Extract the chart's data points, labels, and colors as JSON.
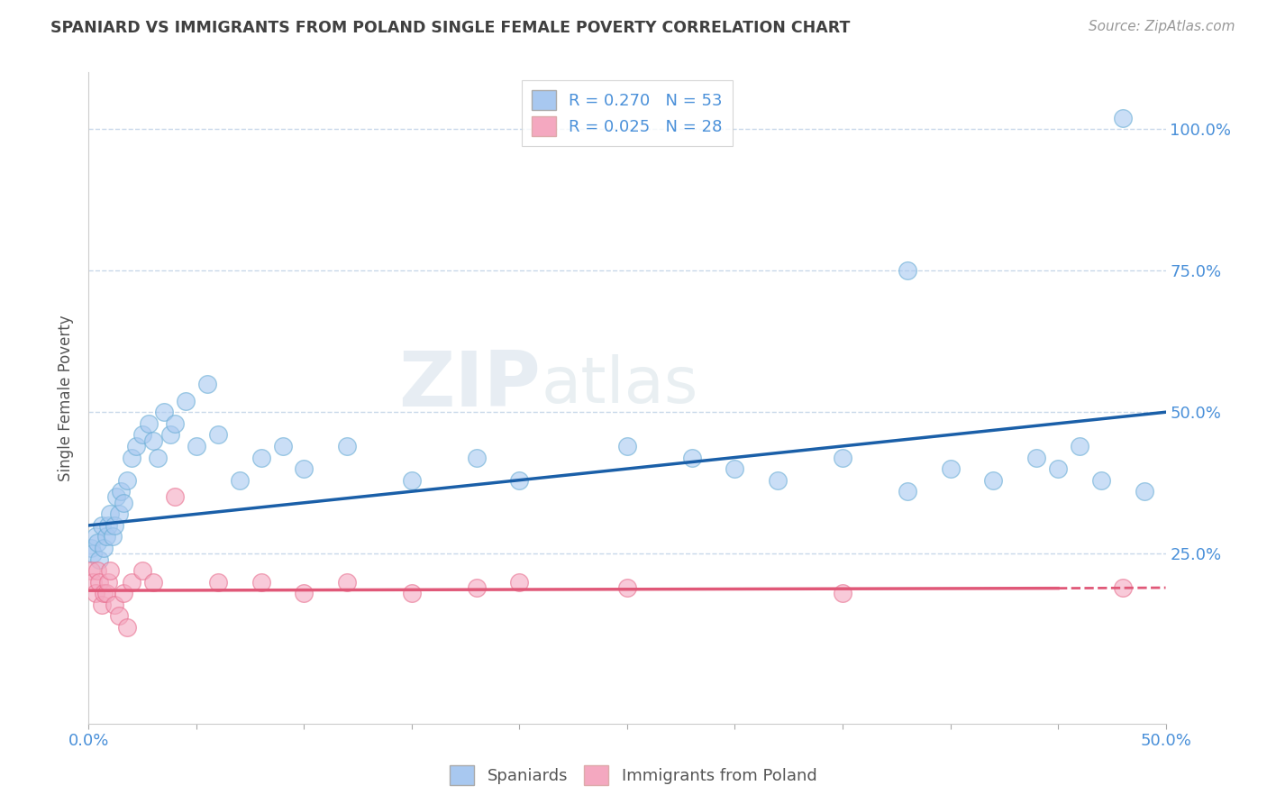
{
  "title": "SPANIARD VS IMMIGRANTS FROM POLAND SINGLE FEMALE POVERTY CORRELATION CHART",
  "source": "Source: ZipAtlas.com",
  "xlim": [
    0.0,
    0.5
  ],
  "ylim": [
    -0.05,
    1.1
  ],
  "watermark_zip": "ZIP",
  "watermark_atlas": "atlas",
  "spaniards_x": [
    0.001,
    0.002,
    0.003,
    0.004,
    0.005,
    0.006,
    0.007,
    0.008,
    0.009,
    0.01,
    0.011,
    0.012,
    0.013,
    0.014,
    0.015,
    0.016,
    0.018,
    0.02,
    0.022,
    0.025,
    0.028,
    0.03,
    0.032,
    0.035,
    0.038,
    0.04,
    0.045,
    0.05,
    0.055,
    0.06,
    0.07,
    0.08,
    0.09,
    0.1,
    0.12,
    0.15,
    0.18,
    0.2,
    0.25,
    0.28,
    0.3,
    0.32,
    0.35,
    0.38,
    0.4,
    0.42,
    0.44,
    0.45,
    0.46,
    0.47,
    0.48,
    0.49,
    0.38
  ],
  "spaniards_y": [
    0.26,
    0.25,
    0.28,
    0.27,
    0.24,
    0.3,
    0.26,
    0.28,
    0.3,
    0.32,
    0.28,
    0.3,
    0.35,
    0.32,
    0.36,
    0.34,
    0.38,
    0.42,
    0.44,
    0.46,
    0.48,
    0.45,
    0.42,
    0.5,
    0.46,
    0.48,
    0.52,
    0.44,
    0.55,
    0.46,
    0.38,
    0.42,
    0.44,
    0.4,
    0.44,
    0.38,
    0.42,
    0.38,
    0.44,
    0.42,
    0.4,
    0.38,
    0.42,
    0.36,
    0.4,
    0.38,
    0.42,
    0.4,
    0.44,
    0.38,
    1.02,
    0.36,
    0.75
  ],
  "poland_x": [
    0.001,
    0.002,
    0.003,
    0.004,
    0.005,
    0.006,
    0.007,
    0.008,
    0.009,
    0.01,
    0.012,
    0.014,
    0.016,
    0.018,
    0.02,
    0.025,
    0.03,
    0.04,
    0.06,
    0.08,
    0.1,
    0.12,
    0.15,
    0.18,
    0.2,
    0.25,
    0.35,
    0.48
  ],
  "poland_y": [
    0.22,
    0.2,
    0.18,
    0.22,
    0.2,
    0.16,
    0.18,
    0.18,
    0.2,
    0.22,
    0.16,
    0.14,
    0.18,
    0.12,
    0.2,
    0.22,
    0.2,
    0.35,
    0.2,
    0.2,
    0.18,
    0.2,
    0.18,
    0.19,
    0.2,
    0.19,
    0.18,
    0.19
  ],
  "blue_line_start_y": 0.3,
  "blue_line_end_y": 0.5,
  "pink_line_y": 0.185,
  "blue_scatter_color": "#a8c8f0",
  "pink_scatter_color": "#f4a8c0",
  "blue_outline_color": "#6aaed6",
  "pink_outline_color": "#e87090",
  "trend_blue_color": "#1a5fa8",
  "trend_pink_color": "#e05878",
  "background_color": "#ffffff",
  "grid_color": "#c8d8ea",
  "ytick_color": "#4a90d9",
  "xtick_color": "#4a90d9",
  "title_color": "#404040",
  "source_color": "#999999",
  "legend_blue_color": "#a8c8f0",
  "legend_pink_color": "#f4a8c0",
  "legend_text_color": "#4a90d9"
}
